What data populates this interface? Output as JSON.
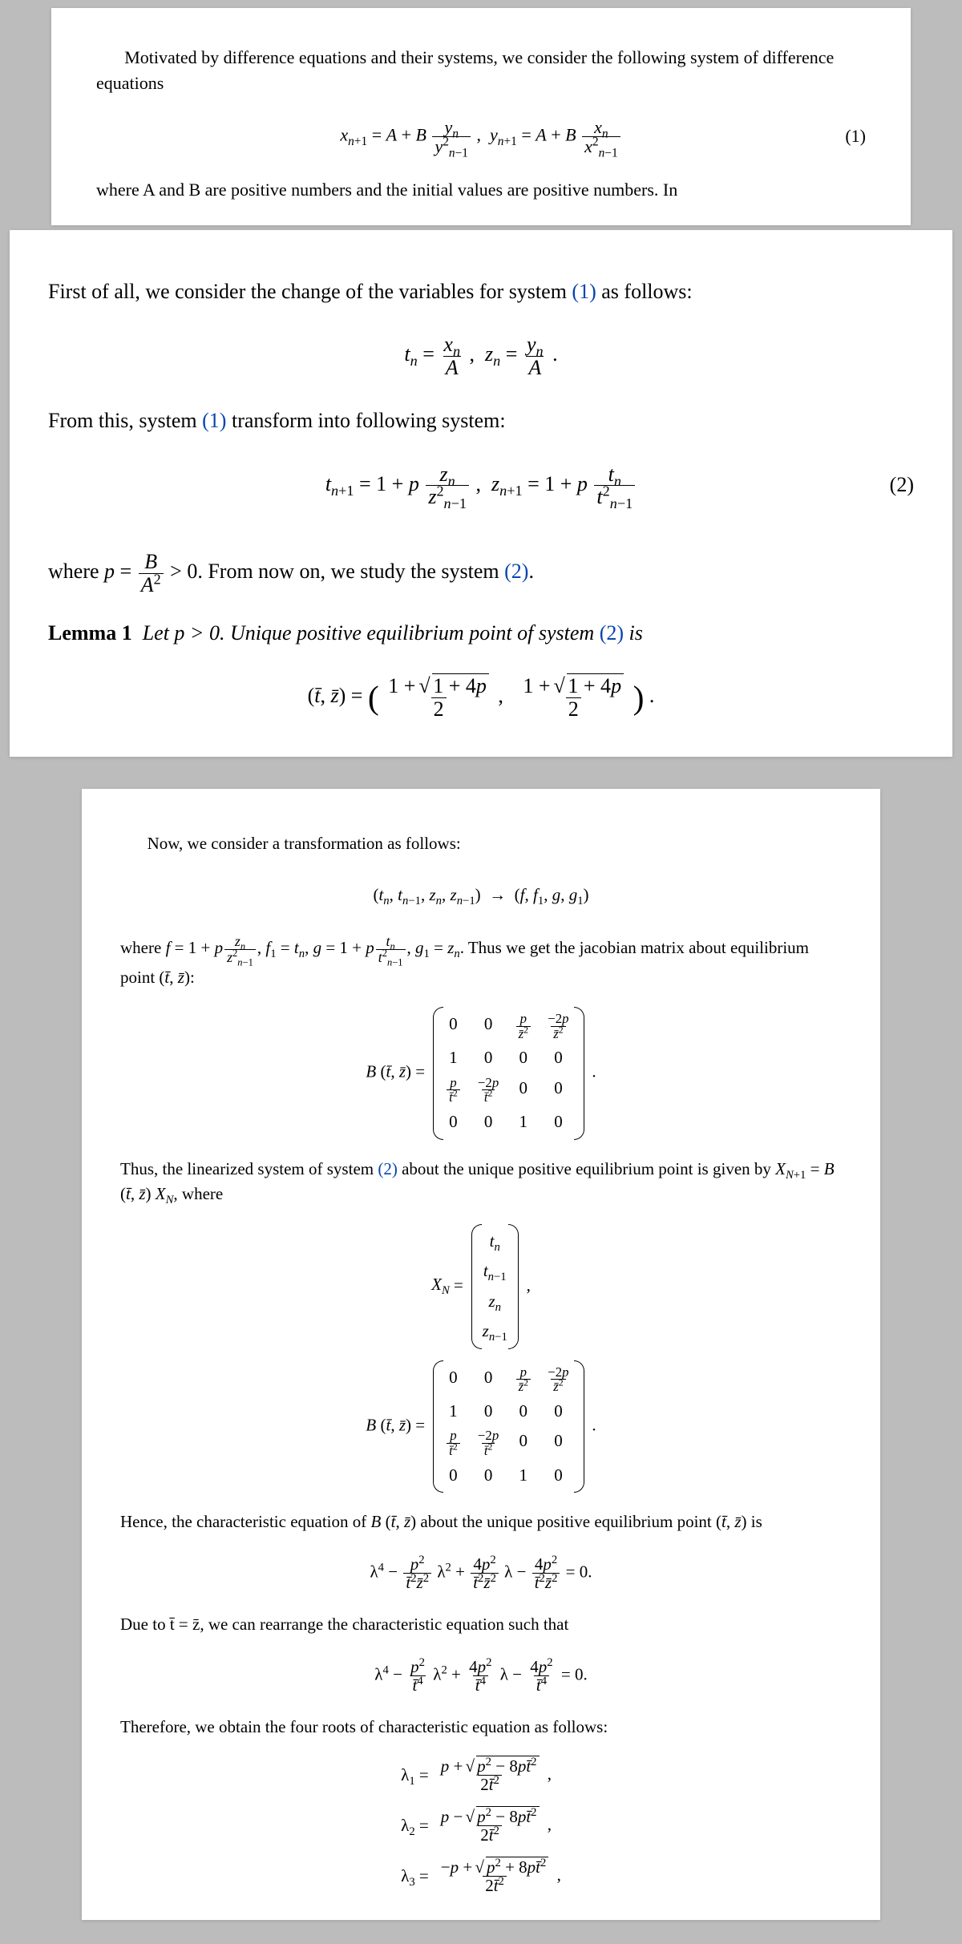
{
  "background_color": "#bcbcbc",
  "panel_color": "#ffffff",
  "link_color": "#0645ad",
  "fonts": {
    "body": "Times New Roman",
    "body_size_top": 22,
    "body_size_mid": 26,
    "body_size_bot": 21
  },
  "top": {
    "intro": "Motivated by difference equations and their systems, we consider the following system of difference equations",
    "eq1_num": "(1)",
    "post": "where A and B are positive numbers and the initial values are positive numbers. In"
  },
  "mid": {
    "lead_a": "First of all, we consider the change of the variables for system ",
    "lead_ref": "(1)",
    "lead_b": " as follows:",
    "transform_a": "From this, system ",
    "transform_ref": "(1)",
    "transform_b": " transform into following system:",
    "eq2_num": "(2)",
    "where_p_a": "where ",
    "where_p_b": " > 0. From now on, we study the system ",
    "where_p_ref": "(2)",
    "where_p_c": ".",
    "lemma_label": "Lemma 1",
    "lemma_text_a": "Let p > 0. Unique positive equilibrium point of system ",
    "lemma_ref": "(2)",
    "lemma_text_b": " is"
  },
  "bot": {
    "p1": "Now, we consider a transformation as follows:",
    "p2_a": "where ",
    "p2_b": ". Thus we get the jacobian matrix about equilibrium point ",
    "p2_c": ":",
    "p3_a": "Thus, the linearized system of system ",
    "p3_ref": "(2)",
    "p3_b": " about the unique positive equilibrium point is given by ",
    "p3_c": ", where",
    "p4_a": "Hence, the characteristic equation of ",
    "p4_b": " about the unique positive equilibrium point ",
    "p4_c": " is",
    "p5": "Due to t̄ = z̄, we can rearrange the characteristic equation such that",
    "p6": "Therefore, we obtain the four roots of characteristic equation as follows:"
  },
  "equations": {
    "sys1": {
      "lhs1": "x",
      "rhs_const": "A + B",
      "frac1_num": "yₙ",
      "frac1_den": "y²ₙ₋₁",
      "lhs2": "y",
      "frac2_num": "xₙ",
      "frac2_den": "x²ₙ₋₁"
    },
    "subst": {
      "t": "xₙ / A",
      "z": "yₙ / A"
    },
    "sys2": {
      "const": "1 + p",
      "f1_num": "zₙ",
      "f1_den": "z²ₙ₋₁",
      "f2_num": "tₙ",
      "f2_den": "t²ₙ₋₁"
    },
    "p_def": "p = B / A²",
    "equil": "(1 + √(1+4p)) / 2",
    "transf_map": "(tₙ, tₙ₋₁, zₙ, zₙ₋₁) → (f, f₁, g, g₁)",
    "jacobian_entries": {
      "r0": [
        "0",
        "0",
        "p/z̄²",
        "−2p/z̄²"
      ],
      "r1": [
        "1",
        "0",
        "0",
        "0"
      ],
      "r2": [
        "p/t̄²",
        "−2p/t̄²",
        "0",
        "0"
      ],
      "r3": [
        "0",
        "0",
        "1",
        "0"
      ]
    },
    "XN": [
      "tₙ",
      "tₙ₋₁",
      "zₙ",
      "zₙ₋₁"
    ],
    "char1": "λ⁴ − (p²/(t̄²z̄²)) λ² + (4p²/(t̄²z̄²)) λ − 4p²/(t̄²z̄²) = 0",
    "char2": "λ⁴ − (p²/t̄⁴) λ² + (4p²/t̄⁴) λ − 4p²/t̄⁴ = 0",
    "roots": {
      "l1": "(p + √(p² − 8pt̄²)) / (2t̄²)",
      "l2": "(p − √(p² − 8pt̄²)) / (2t̄²)",
      "l3": "(−p + √(p² + 8pt̄²)) / (2t̄²)"
    }
  }
}
